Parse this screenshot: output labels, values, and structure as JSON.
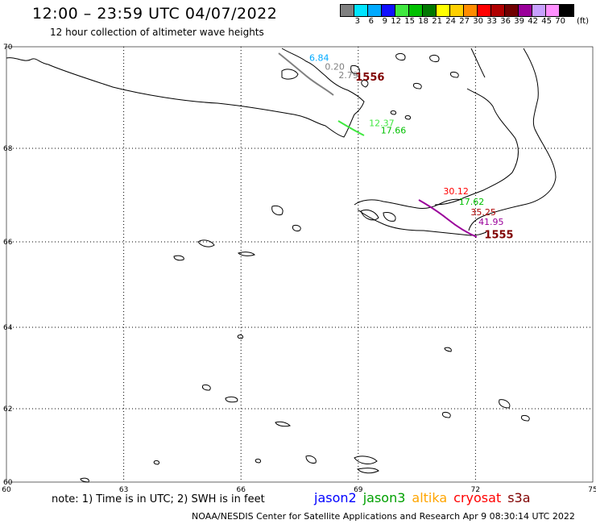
{
  "title": "12:00 – 23:59 UTC 04/07/2022",
  "subtitle": "12 hour collection of altimeter wave heights",
  "colorbar": {
    "ticks": [
      "3",
      "6",
      "9",
      "12",
      "15",
      "18",
      "21",
      "24",
      "27",
      "30",
      "33",
      "36",
      "39",
      "42",
      "45",
      "70"
    ],
    "unit": "(ft)",
    "colors": [
      "#808080",
      "#00e5ff",
      "#00aaff",
      "#1010ff",
      "#40e840",
      "#00c000",
      "#007800",
      "#ffff00",
      "#ffd000",
      "#ff8c00",
      "#ff0000",
      "#b00000",
      "#700000",
      "#9a009a",
      "#c8a0ff",
      "#ff90ff",
      "#000000"
    ]
  },
  "note": "note:  1) Time is in UTC;  2) SWH is in feet",
  "satellites": [
    {
      "name": "jason2",
      "color": "#0000ff"
    },
    {
      "name": "jason3",
      "color": "#00a000"
    },
    {
      "name": "altika",
      "color": "#ffa500"
    },
    {
      "name": "cryosat",
      "color": "#ff0000"
    },
    {
      "name": "s3a",
      "color": "#800000"
    }
  ],
  "credit": "NOAA/NESDIS Center for Satellite Applications and Research    Apr  9 08:30:14 UTC 2022",
  "chart_data": {
    "type": "map",
    "xlim": [
      60,
      75
    ],
    "ylim": [
      60,
      70
    ],
    "x_ticks": [
      "60",
      "63",
      "66",
      "69",
      "72",
      "75"
    ],
    "y_ticks": [
      "60",
      "62",
      "64",
      "66",
      "68",
      "70"
    ],
    "grid": true,
    "wave_labels": [
      {
        "text": "6.84",
        "color": "#00aaff",
        "lon": 68.0,
        "lat": 69.72
      },
      {
        "text": "0.20",
        "color": "#808080",
        "lon": 68.4,
        "lat": 69.55
      },
      {
        "text": "2.79",
        "color": "#808080",
        "lon": 68.75,
        "lat": 69.38
      },
      {
        "text": "12.37",
        "color": "#40e840",
        "lon": 69.6,
        "lat": 68.44
      },
      {
        "text": "17.66",
        "color": "#00c000",
        "lon": 69.9,
        "lat": 68.29
      },
      {
        "text": "30.12",
        "color": "#ff0000",
        "lon": 71.5,
        "lat": 67.02
      },
      {
        "text": "17.62",
        "color": "#00c000",
        "lon": 71.9,
        "lat": 66.79
      },
      {
        "text": "35.25",
        "color": "#b00000",
        "lon": 72.2,
        "lat": 66.57
      },
      {
        "text": "41.95",
        "color": "#9a009a",
        "lon": 72.4,
        "lat": 66.36
      }
    ],
    "track_times": [
      {
        "text": "1556",
        "color": "#800000",
        "lon": 69.3,
        "lat": 69.33
      },
      {
        "text": "1555",
        "color": "#800000",
        "lon": 72.6,
        "lat": 66.08
      }
    ]
  }
}
